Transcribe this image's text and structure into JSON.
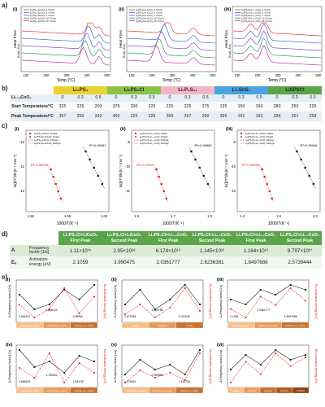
{
  "panel_labels": {
    "a": "a)",
    "b": "b)",
    "c": "c)",
    "d": "d)",
    "e": "e)"
  },
  "sub_labels": [
    "(i)",
    "(ii)",
    "(iii)",
    "(iv)",
    "(v)",
    "(vi)"
  ],
  "section_a": {
    "ylabel": "Heat Flow",
    "yunit": "Endo. Exo.",
    "xlabel": "Temp (°C)",
    "ticks": [
      "100",
      "200",
      "300",
      "400",
      "500"
    ],
    "legends": [
      [
        "Li₃PS₄+LiCoO₂ 2 °C/min",
        "Li₃PS₄+LiCoO₂ 5 °C/min",
        "Li₃PS₄+LiCoO₂ 7 °C/min",
        "Li₃PS₄+LiCoO₂ 10 °C/min",
        "Li₃PS₄+LiCoO₂ 15 °C/min"
      ],
      [
        "Li₆PS₅Cl+LiCoO₂ 2 °C/min",
        "Li₆PS₅Cl+LiCoO₂ 5 °C/min",
        "Li₆PS₅Cl+LiCoO₂ 7 °C/min",
        "Li₆PS₅Cl+LiCoO₂ 10 °C/min",
        "Li₆PS₅Cl+LiCoO₂ 15 °C/min"
      ],
      [
        "Li₆PS₅Cl+Li₀.₅CoO₂ 2 °C/min",
        "Li₆PS₅Cl+Li₀.₅CoO₂ 5 °C/min",
        "Li₆PS₅Cl+Li₀.₅CoO₂ 7 °C/min",
        "Li₆PS₅Cl+Li₀.₅CoO₂ 10 °C/min",
        "Li₆PS₅Cl+Li₀.₅CoO₂ 15 °C/min"
      ]
    ],
    "colors": [
      "#e23d3d",
      "#3a6fd8",
      "#7a4bc9",
      "#2a9d5a",
      "#c4339e"
    ]
  },
  "section_b": {
    "groups": [
      "Li₃PS₄",
      "Li₆PS₅Cl",
      "Li₇P₃S₁₁",
      "Li₄SnS₄",
      "LiSPSCl"
    ],
    "group_colors": [
      "#e8d234",
      "#8bc34a",
      "#f2b7c6",
      "#4aa3df",
      "#5aa54a"
    ],
    "row_labels": [
      "Li₁₋ₓCoO₂",
      "Start Temperature/°C",
      "Peak Temperature/°C"
    ],
    "x_values": [
      "0",
      "0.3",
      "0.5",
      "0",
      "0.3",
      "0.5",
      "0",
      "0.3",
      "0.5",
      "0",
      "0.3",
      "0.5",
      "0",
      "0.3",
      "0.5"
    ],
    "start": [
      "325",
      "225",
      "200",
      "375",
      "200",
      "225",
      "225",
      "225",
      "275",
      "135",
      "150",
      "150",
      "280",
      "250",
      "225"
    ],
    "peak": [
      "357",
      "250",
      "242",
      "400",
      "225",
      "225",
      "359",
      "267",
      "260",
      "365",
      "191",
      "192",
      "334",
      "261",
      "258"
    ]
  },
  "section_c": {
    "ylabel": "ln(β/T²)/ln(K⁻¹ min⁻¹)",
    "xlabel": "1000/T(K⁻¹)",
    "panels": [
      {
        "legend": [
          "Li₃PS₄+LiCoO₂ Peak1",
          "Li₆PS₅Cl+LiCoO₂ Peak1",
          "Li₃PS₄+LiCoO₂ Fitting1",
          "Li₆PS₅Cl+LiCoO₂ Fitting2"
        ],
        "r2_black": "R²=0.98451",
        "r2_red": "R²=0.98259",
        "xticks": [
          "1.50",
          "1.55",
          "1.60"
        ],
        "yticks": [
          "-10",
          "-11",
          "-12"
        ]
      },
      {
        "legend": [
          "Li₆PS₅Cl+Li₀.₅CoO₂ Peak1",
          "Li₆PS₅Cl+Li₀.₅CoO₂ Peak2",
          "Li₆PS₅Cl+Li₀.₅CoO₂ Fitting1",
          "Li₆PS₅Cl+Li₀.₅CoO₂ Fitting2"
        ],
        "r2_black": "R²=0.99889",
        "r2_red": "R²=0.97523",
        "xticks": [
          "1.5",
          "1.7",
          "1.9"
        ],
        "yticks": [
          "-9",
          "-10",
          "-11"
        ]
      },
      {
        "legend": [
          "Li₆PS₅Cl+Li₀.₇CoO₂ Peak1",
          "Li₆PS₅Cl+Li₀.₇CoO₂ Peak2",
          "Li₆PS₅Cl+Li₀.₇CoO₂ Fitting1",
          "Li₆PS₅Cl+Li₀.₇CoO₂ Fitting2"
        ],
        "r2_black": "R²=0.99046",
        "r2_red": "R²=0.98998",
        "xticks": [
          "1.4",
          "1.6",
          "2.0"
        ],
        "yticks": [
          "-8",
          "-10",
          "-12"
        ]
      }
    ]
  },
  "section_d": {
    "headers": [
      "Li₆PS₅Cl+LiCoO₂ First Peak",
      "Li₆PS₅Cl+LiCoO₂ Second Peak",
      "Li₆PS₅Cl+Li₀.₅CoO₂ First Peak",
      "Li₆PS₅Cl+Li₀.₅CoO₂ Second Peak",
      "Li₆PS₅Cl+Li₀.₇CoO₂ First Peak",
      "Li₆PS₅Cl+Li₀.₇CoO₂ Second Peak"
    ],
    "row_a": {
      "label": "A",
      "desc": "Frequency factor [1/s]",
      "values": [
        "1.11×10¹⁵",
        "2.95×10²⁸",
        "6.174×10¹⁹",
        "1.145×10²²",
        "1.164×10¹⁶",
        "9.797×10¹⁷"
      ]
    },
    "row_e": {
      "label": "Eₐ",
      "desc": "Activation energy [eV]",
      "values": [
        "2.1059",
        "3.990475",
        "2.0361777",
        "2.6236381",
        "1.8497686",
        "2.5739444"
      ]
    }
  },
  "section_e": {
    "ylabel_left": "A-Frequency factor [1/s]",
    "ylabel_right": "Ea-Activation energy [eV]",
    "panels": [
      {
        "id": "(i)",
        "left": [
          5,
          2,
          3,
          6,
          4,
          7
        ],
        "right": [
          2.2,
          1.9,
          2.1,
          2.6,
          2.0,
          2.4
        ],
        "note": [
          "0.994707",
          "0.846122",
          "0.85962"
        ],
        "cats": [
          "Li₃PS₄+Li₁₋ₓCoO₂",
          "Li₆PS₅Cl+Li₁₋ₓCoO₂",
          "Li₇P₃S₁₁+Li₁₋ₓCoO₂"
        ]
      },
      {
        "id": "(ii)",
        "left": [
          3,
          6,
          2,
          4,
          7,
          3
        ],
        "right": [
          1.7,
          2.0,
          1.6,
          1.9,
          2.5,
          1.8
        ],
        "note": [
          "1.571538",
          "1.424758",
          "0.761949"
        ],
        "cats": [
          "Li₃PS₄",
          "Li₆PS₅Cl",
          "Li₇P₃S₁₁"
        ]
      },
      {
        "id": "(iii)",
        "left": [
          4,
          3,
          6,
          5,
          7,
          6
        ],
        "right": [
          2.1,
          1.9,
          2.4,
          2.2,
          2.6,
          2.3
        ],
        "note": [
          "2.1059",
          "2.0361777",
          "1.8497686"
        ],
        "cats": [
          "Li₆PS₅Cl+LiCoO₂",
          "Li₆PS₅Cl+Li₀.₅CoO₂",
          "Li₆PS₅Cl+Li₀.₇CoO₂"
        ]
      },
      {
        "id": "(iv)",
        "left": [
          6,
          3,
          4,
          2,
          5,
          4
        ],
        "right": [
          1.9,
          1.7,
          2.2,
          1.6,
          2.0,
          1.8
        ],
        "note": [
          "1.866913",
          "1.769022",
          "1.534787"
        ],
        "cats": [
          "Li₃PS₄+Li₁₋ₓCoO₂",
          "Li₆PS₅Cl+Li₁₋ₓCoO₂",
          "Li₇P₃S₁₁+Li₁₋ₓCoO₂"
        ]
      },
      {
        "id": "(v)",
        "left": [
          2,
          5,
          3,
          4,
          2,
          7
        ],
        "right": [
          1.6,
          2.1,
          1.8,
          2.0,
          1.7,
          2.8
        ],
        "note": [
          "1.379002",
          "2.069556",
          "1.432795"
        ],
        "cats": [
          "LiSPSCl+Li₁₋ₓCoO₂",
          "Li₆PS₅Cl+Li₁₋ₓCoO₂",
          "LiSnS₄+Li₁₋ₓCoO₂"
        ]
      },
      {
        "id": "(vi)",
        "left": [
          3,
          6,
          4,
          7,
          5,
          6
        ],
        "right": [
          1.5,
          2.0,
          1.7,
          2.2,
          1.9,
          2.1
        ],
        "note": [],
        "cats": [
          "Li₃PS₄",
          "Li₆PS₅Cl",
          "Li₇P₃S₁₁",
          "Li₄SnS₄",
          "LiSPSCl"
        ]
      }
    ],
    "cat_colors": [
      "#f6c08a",
      "#e89a5a",
      "#c8732e",
      "#b05a1e",
      "#8a4312"
    ]
  }
}
